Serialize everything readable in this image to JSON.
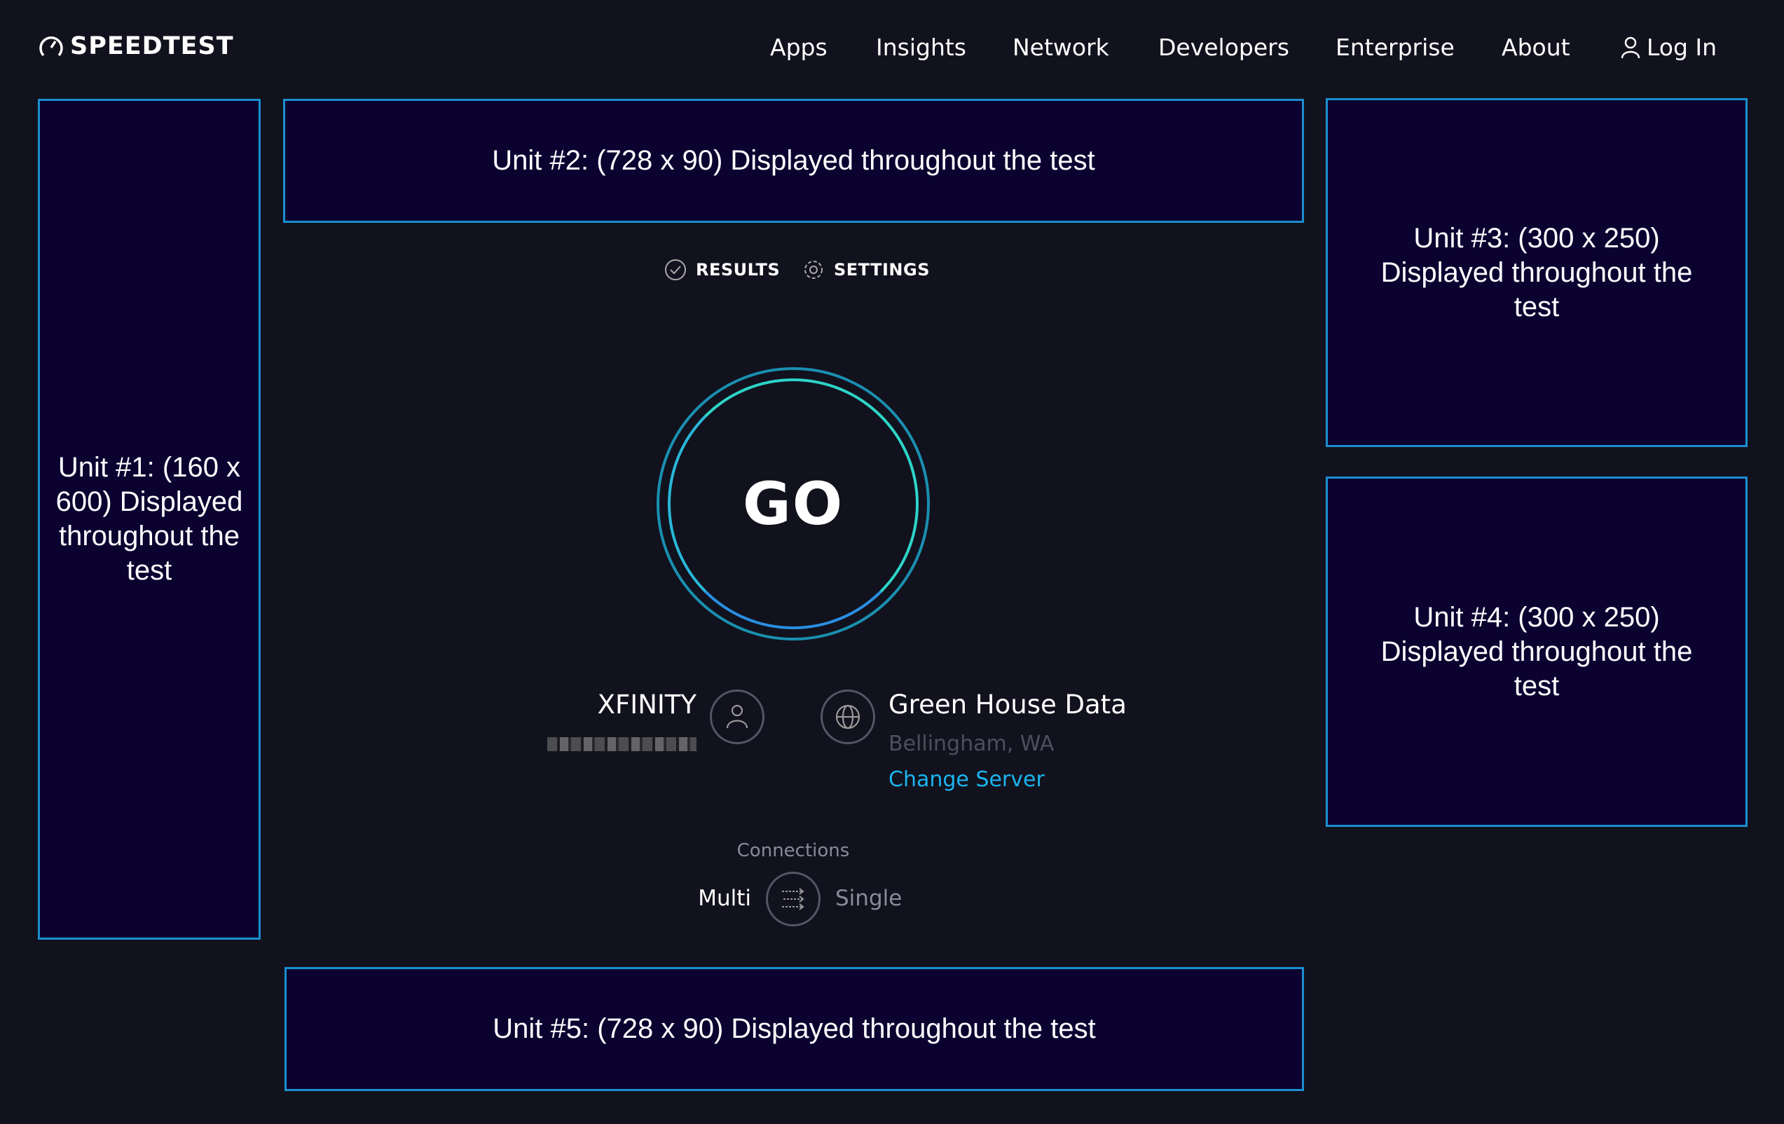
{
  "header": {
    "logo_text": "SPEEDTEST",
    "nav": [
      "Apps",
      "Insights",
      "Network",
      "Developers",
      "Enterprise",
      "About"
    ],
    "login_label": "Log In"
  },
  "ads": {
    "unit1": "Unit #1: (160 x 600) Displayed throughout the test",
    "unit2": "Unit #2: (728 x 90) Displayed throughout the test",
    "unit3": "Unit #3: (300 x 250) Displayed throughout the test",
    "unit4": "Unit #4: (300 x 250) Displayed throughout the test",
    "unit5": "Unit #5: (728 x 90) Displayed throughout the test"
  },
  "tabs": {
    "results": "RESULTS",
    "settings": "SETTINGS"
  },
  "go_label": "GO",
  "isp": {
    "name": "XFINITY"
  },
  "server": {
    "name": "Green House Data",
    "location": "Bellingham, WA",
    "change_label": "Change Server"
  },
  "connections": {
    "label": "Connections",
    "multi": "Multi",
    "single": "Single",
    "selected": "Multi"
  },
  "colors": {
    "accent": "#1cb4f0",
    "ad_border": "#1a8fd0",
    "background": "#11121d",
    "ring_outer": "#1a8fb0",
    "ring_inner": "#2dd4c8"
  }
}
